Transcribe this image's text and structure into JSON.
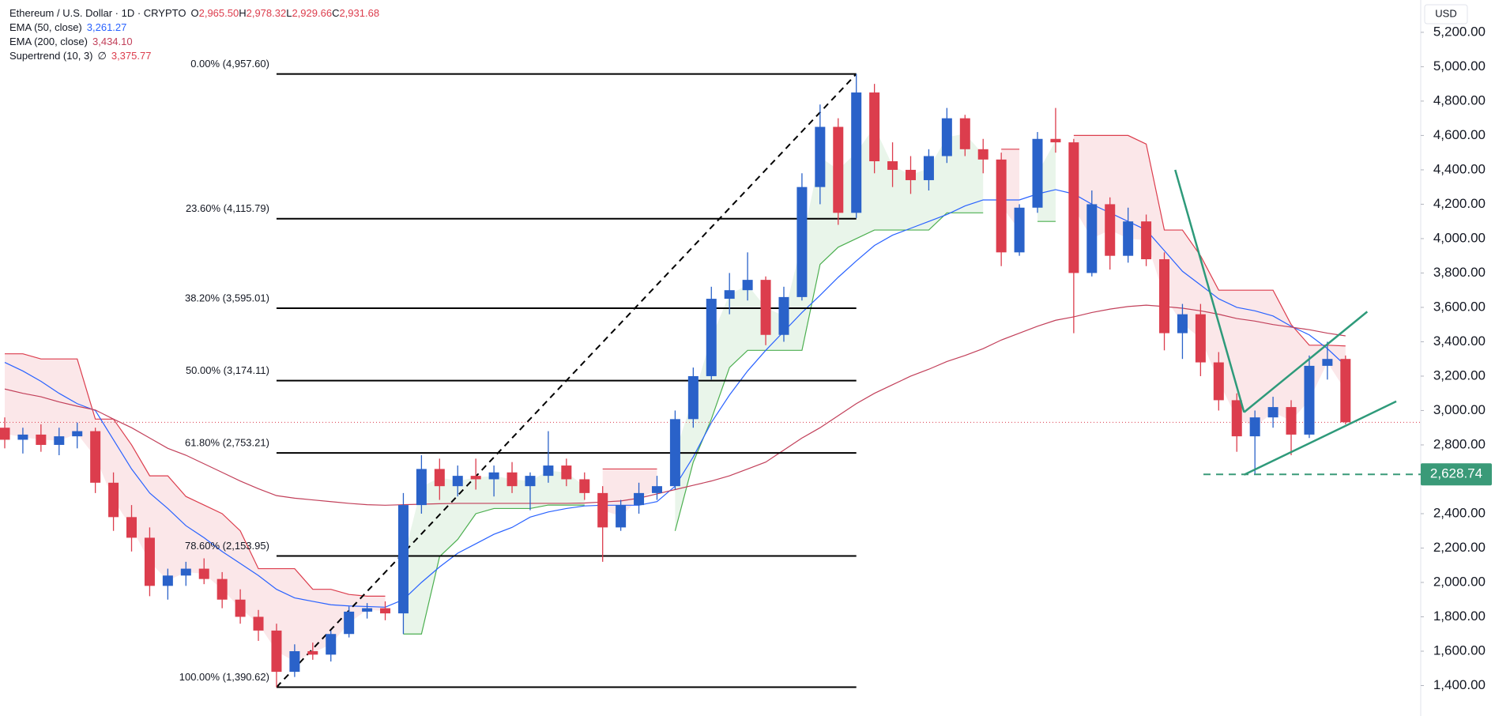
{
  "chart_data": {
    "type": "candlestick",
    "title": "Ethereum / U.S. Dollar · 1D · CRYPTO",
    "ohlc_legend": [
      {
        "name": "O",
        "value": 2965.5,
        "label": "2,965.50"
      },
      {
        "name": "H",
        "value": 2978.32,
        "label": "2,978.32"
      },
      {
        "name": "L",
        "value": 2929.66,
        "label": "2,929.66"
      },
      {
        "name": "C",
        "value": 2931.68,
        "label": "2,931.68"
      }
    ],
    "currency": "USD",
    "up_color": "#2a62c9",
    "down_color": "#dc3d4d",
    "ylim": [
      1223,
      5388
    ],
    "yticks": [
      {
        "value": 1400,
        "label": "1,400.00"
      },
      {
        "value": 1600,
        "label": "1,600.00"
      },
      {
        "value": 1800,
        "label": "1,800.00"
      },
      {
        "value": 2000,
        "label": "2,000.00"
      },
      {
        "value": 2200,
        "label": "2,200.00"
      },
      {
        "value": 2400,
        "label": "2,400.00"
      },
      {
        "value": 2800,
        "label": "2,800.00"
      },
      {
        "value": 3000,
        "label": "3,000.00"
      },
      {
        "value": 3200,
        "label": "3,200.00"
      },
      {
        "value": 3400,
        "label": "3,400.00"
      },
      {
        "value": 3600,
        "label": "3,600.00"
      },
      {
        "value": 3800,
        "label": "3,800.00"
      },
      {
        "value": 4000,
        "label": "4,000.00"
      },
      {
        "value": 4200,
        "label": "4,200.00"
      },
      {
        "value": 4400,
        "label": "4,400.00"
      },
      {
        "value": 4600,
        "label": "4,600.00"
      },
      {
        "value": 4800,
        "label": "4,800.00"
      },
      {
        "value": 5000,
        "label": "5,000.00"
      },
      {
        "value": 5200,
        "label": "5,200.00"
      }
    ],
    "candles": [
      [
        2900,
        2960,
        2780,
        2830
      ],
      [
        2830,
        2900,
        2750,
        2860
      ],
      [
        2860,
        2920,
        2760,
        2800
      ],
      [
        2800,
        2900,
        2740,
        2850
      ],
      [
        2850,
        2930,
        2780,
        2880
      ],
      [
        2880,
        2900,
        2520,
        2580
      ],
      [
        2580,
        2640,
        2300,
        2380
      ],
      [
        2380,
        2450,
        2180,
        2260
      ],
      [
        2260,
        2320,
        1920,
        1980
      ],
      [
        1980,
        2080,
        1900,
        2040
      ],
      [
        2040,
        2120,
        1980,
        2080
      ],
      [
        2080,
        2140,
        1990,
        2020
      ],
      [
        2020,
        2060,
        1850,
        1900
      ],
      [
        1900,
        1960,
        1760,
        1800
      ],
      [
        1800,
        1840,
        1660,
        1720
      ],
      [
        1720,
        1760,
        1390.62,
        1480
      ],
      [
        1480,
        1640,
        1450,
        1600
      ],
      [
        1600,
        1650,
        1550,
        1580
      ],
      [
        1580,
        1720,
        1540,
        1700
      ],
      [
        1700,
        1860,
        1680,
        1830
      ],
      [
        1830,
        1880,
        1790,
        1850
      ],
      [
        1850,
        1890,
        1780,
        1820
      ],
      [
        1820,
        2520,
        1700,
        2450
      ],
      [
        2450,
        2740,
        2400,
        2660
      ],
      [
        2660,
        2720,
        2480,
        2560
      ],
      [
        2560,
        2680,
        2500,
        2620
      ],
      [
        2620,
        2720,
        2540,
        2600
      ],
      [
        2600,
        2680,
        2500,
        2640
      ],
      [
        2640,
        2700,
        2520,
        2560
      ],
      [
        2560,
        2640,
        2420,
        2620
      ],
      [
        2620,
        2880,
        2580,
        2680
      ],
      [
        2680,
        2720,
        2560,
        2600
      ],
      [
        2600,
        2640,
        2480,
        2520
      ],
      [
        2520,
        2560,
        2120,
        2320
      ],
      [
        2320,
        2480,
        2300,
        2450
      ],
      [
        2450,
        2580,
        2400,
        2520
      ],
      [
        2520,
        2620,
        2480,
        2560
      ],
      [
        2560,
        3000,
        2540,
        2950
      ],
      [
        2950,
        3250,
        2900,
        3200
      ],
      [
        3200,
        3720,
        3180,
        3650
      ],
      [
        3650,
        3800,
        3560,
        3700
      ],
      [
        3700,
        3920,
        3640,
        3760
      ],
      [
        3760,
        3780,
        3380,
        3440
      ],
      [
        3440,
        3720,
        3400,
        3660
      ],
      [
        3660,
        4380,
        3640,
        4300
      ],
      [
        4300,
        4780,
        4200,
        4650
      ],
      [
        4650,
        4700,
        4080,
        4150
      ],
      [
        4150,
        4957.6,
        4120,
        4850
      ],
      [
        4850,
        4900,
        4380,
        4450
      ],
      [
        4450,
        4560,
        4300,
        4400
      ],
      [
        4400,
        4480,
        4260,
        4340
      ],
      [
        4340,
        4520,
        4280,
        4480
      ],
      [
        4480,
        4760,
        4440,
        4700
      ],
      [
        4700,
        4720,
        4480,
        4520
      ],
      [
        4520,
        4580,
        4380,
        4460
      ],
      [
        4460,
        4500,
        3840,
        3920
      ],
      [
        3920,
        4200,
        3900,
        4180
      ],
      [
        4180,
        4620,
        4150,
        4580
      ],
      [
        4580,
        4760,
        4500,
        4560
      ],
      [
        4560,
        4580,
        3450,
        3800
      ],
      [
        3800,
        4280,
        3780,
        4200
      ],
      [
        4200,
        4240,
        3820,
        3900
      ],
      [
        3900,
        4180,
        3860,
        4100
      ],
      [
        4100,
        4140,
        3840,
        3880
      ],
      [
        3880,
        3920,
        3350,
        3450
      ],
      [
        3450,
        3620,
        3300,
        3560
      ],
      [
        3560,
        3620,
        3200,
        3280
      ],
      [
        3280,
        3340,
        3000,
        3060
      ],
      [
        3060,
        3100,
        2760,
        2850
      ],
      [
        2850,
        3000,
        2628.74,
        2960
      ],
      [
        2960,
        3080,
        2900,
        3020
      ],
      [
        3020,
        3060,
        2740,
        2860
      ],
      [
        2860,
        3320,
        2840,
        3260
      ],
      [
        3260,
        3400,
        3180,
        3300
      ],
      [
        3300,
        3320,
        2920,
        2931.68
      ]
    ],
    "series": [
      {
        "name": "EMA (50, close)",
        "color": "#2962ff",
        "value": 3261.27,
        "value_label": "3,261.27",
        "values": [
          3280,
          3230,
          3170,
          3100,
          3040,
          3000,
          2830,
          2660,
          2520,
          2430,
          2330,
          2260,
          2180,
          2110,
          2040,
          1960,
          1910,
          1890,
          1870,
          1863,
          1860,
          1856,
          1900,
          2000,
          2090,
          2170,
          2225,
          2280,
          2320,
          2380,
          2410,
          2430,
          2445,
          2449,
          2449,
          2449,
          2470,
          2560,
          2730,
          2930,
          3090,
          3230,
          3350,
          3460,
          3570,
          3670,
          3775,
          3870,
          3960,
          4020,
          4060,
          4100,
          4140,
          4190,
          4225,
          4225,
          4225,
          4260,
          4285,
          4260,
          4200,
          4150,
          4100,
          4050,
          3930,
          3810,
          3730,
          3650,
          3600,
          3580,
          3550,
          3490,
          3440,
          3360,
          3261.27
        ]
      },
      {
        "name": "EMA (200, close)",
        "color": "#c2405a",
        "value": 3434.1,
        "value_label": "3,434.10",
        "values": [
          3125,
          3100,
          3080,
          3050,
          3025,
          3003,
          2950,
          2900,
          2840,
          2780,
          2740,
          2690,
          2640,
          2590,
          2545,
          2505,
          2490,
          2480,
          2470,
          2460,
          2452,
          2449,
          2452,
          2455,
          2458,
          2460,
          2460,
          2460,
          2460,
          2460,
          2460,
          2460,
          2462,
          2468,
          2474,
          2490,
          2515,
          2540,
          2565,
          2590,
          2620,
          2660,
          2700,
          2770,
          2840,
          2900,
          2970,
          3040,
          3100,
          3150,
          3200,
          3240,
          3285,
          3320,
          3360,
          3410,
          3450,
          3490,
          3525,
          3545,
          3570,
          3590,
          3605,
          3613,
          3605,
          3595,
          3580,
          3560,
          3535,
          3520,
          3500,
          3485,
          3470,
          3450,
          3434.1
        ]
      },
      {
        "name": "Supertrend (10, 3)",
        "symbol": "∅",
        "color": "#dc3d4d",
        "value": 3375.77,
        "value_label": "3,375.77",
        "up_color": "#4caf50",
        "down_color": "#dc3d4d",
        "values_up": [
          null,
          null,
          null,
          null,
          null,
          null,
          null,
          null,
          null,
          null,
          null,
          null,
          null,
          null,
          null,
          null,
          null,
          null,
          null,
          null,
          null,
          null,
          1700,
          1700,
          2150,
          2250,
          2400,
          2430,
          2430,
          2430,
          2450,
          2450,
          2450,
          null,
          null,
          null,
          null,
          2300,
          2700,
          2950,
          3250,
          3350,
          3350,
          3350,
          3350,
          3850,
          3950,
          4000,
          4050,
          4050,
          4050,
          4050,
          4150,
          4150,
          4150,
          null,
          null,
          4100,
          4100,
          null,
          null,
          null,
          null,
          null,
          null,
          null,
          null,
          null,
          null,
          null,
          null,
          null,
          null,
          null,
          null
        ],
        "values_down": [
          3330,
          3330,
          3300,
          3300,
          3300,
          2950,
          2950,
          2800,
          2620,
          2620,
          2500,
          2450,
          2400,
          2300,
          2080,
          2080,
          2080,
          1960,
          1960,
          1930,
          1920,
          1920,
          null,
          null,
          null,
          null,
          null,
          null,
          null,
          null,
          null,
          null,
          null,
          2660,
          2660,
          2660,
          2660,
          null,
          null,
          null,
          null,
          null,
          null,
          null,
          null,
          null,
          null,
          null,
          null,
          null,
          null,
          null,
          null,
          null,
          null,
          4520,
          4520,
          null,
          null,
          4600,
          4600,
          4600,
          4600,
          4550,
          4050,
          4050,
          3900,
          3700,
          3700,
          3700,
          3700,
          3500,
          3380,
          3380,
          3375.77
        ]
      }
    ],
    "fibonacci": {
      "x": [
        15,
        47
      ],
      "levels": [
        {
          "value": 4957.6,
          "label": "0.00% (4,957.60)"
        },
        {
          "value": 4115.79,
          "label": "23.60% (4,115.79)"
        },
        {
          "value": 3595.01,
          "label": "38.20% (3,595.01)"
        },
        {
          "value": 3174.11,
          "label": "50.00% (3,174.11)"
        },
        {
          "value": 2753.21,
          "label": "61.80% (2,753.21)"
        },
        {
          "value": 2153.95,
          "label": "78.60% (2,153.95)"
        },
        {
          "value": 1390.62,
          "label": "100.00% (1,390.62)"
        }
      ]
    },
    "trendlines": {
      "color": "#2e9a7a",
      "lines": [
        {
          "x": [
            64.6,
            68.4
          ],
          "values": [
            4400,
            2990
          ]
        },
        {
          "x": [
            68.4,
            75.2
          ],
          "values": [
            2990,
            3575
          ]
        },
        {
          "x": [
            68.4,
            76.8
          ],
          "values": [
            2626,
            3053
          ]
        }
      ]
    },
    "price_line": {
      "value": 2628.74,
      "label": "2,628.74",
      "color": "#3a9a78"
    }
  }
}
